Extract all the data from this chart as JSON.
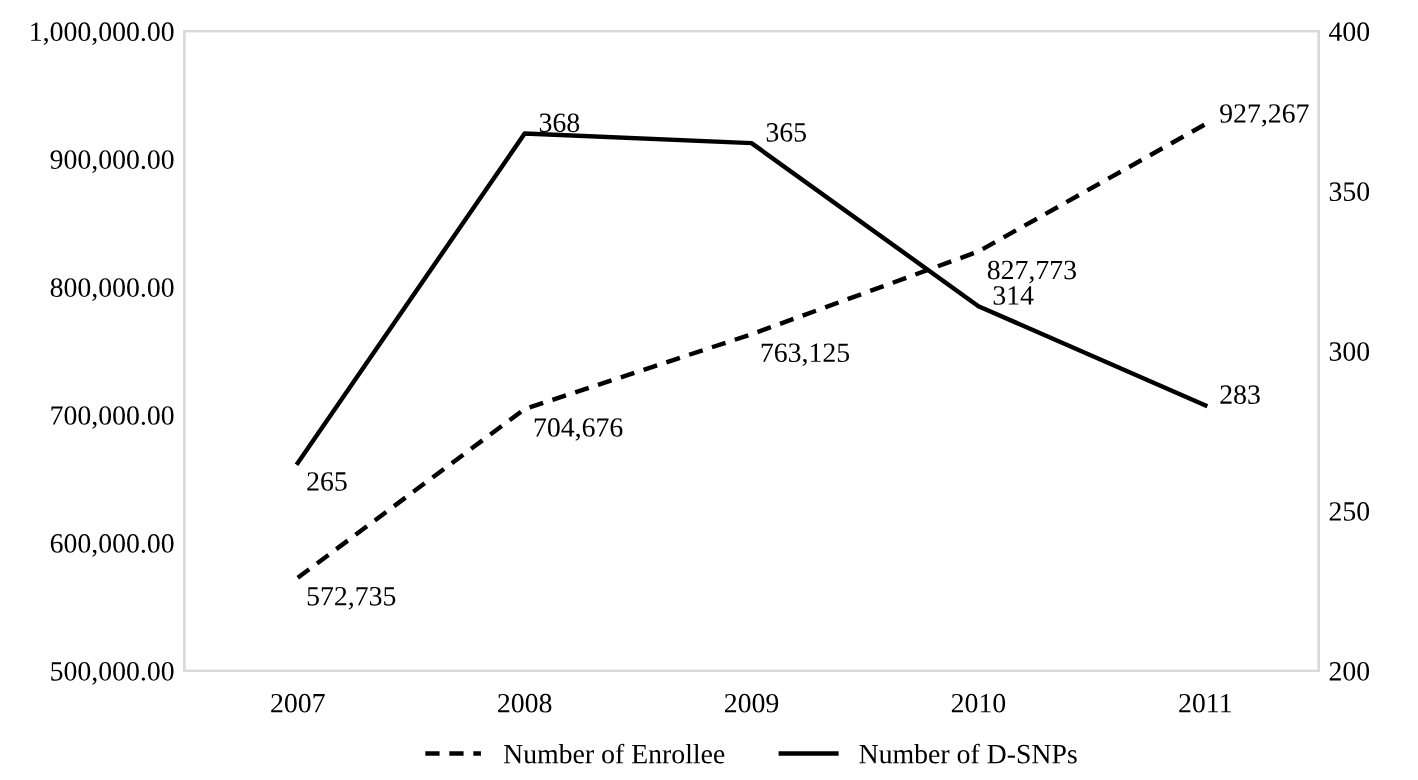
{
  "chart_data": {
    "type": "line",
    "categories": [
      "2007",
      "2008",
      "2009",
      "2010",
      "2011"
    ],
    "series": [
      {
        "name": "Number of Enrollee",
        "color": "#000000",
        "line_style": "dashed",
        "values": [
          572735,
          704676,
          763125,
          827773,
          927267
        ],
        "value_labels": [
          "572,735",
          "704,676",
          "763,125",
          "827,773",
          "927,267"
        ]
      },
      {
        "name": "Number of D-SNPs",
        "color": "#000000",
        "line_style": "solid",
        "axis": "y2",
        "values": [
          265,
          368,
          365,
          314,
          283
        ],
        "value_labels": [
          "265",
          "368",
          "365",
          "314",
          "283"
        ]
      }
    ],
    "ylim": [
      500000,
      1000000
    ],
    "yticks": [
      {
        "value": 500000,
        "label": "500,000.00"
      },
      {
        "value": 600000,
        "label": "600,000.00"
      },
      {
        "value": 700000,
        "label": "700,000.00"
      },
      {
        "value": 800000,
        "label": "800,000.00"
      },
      {
        "value": 900000,
        "label": "900,000.00"
      },
      {
        "value": 1000000,
        "label": "1,000,000.00"
      }
    ],
    "y2lim": [
      200,
      400
    ],
    "y2ticks": [
      200,
      250,
      300,
      350,
      400
    ],
    "legend": "bottom",
    "grid": false,
    "marker": "none"
  }
}
